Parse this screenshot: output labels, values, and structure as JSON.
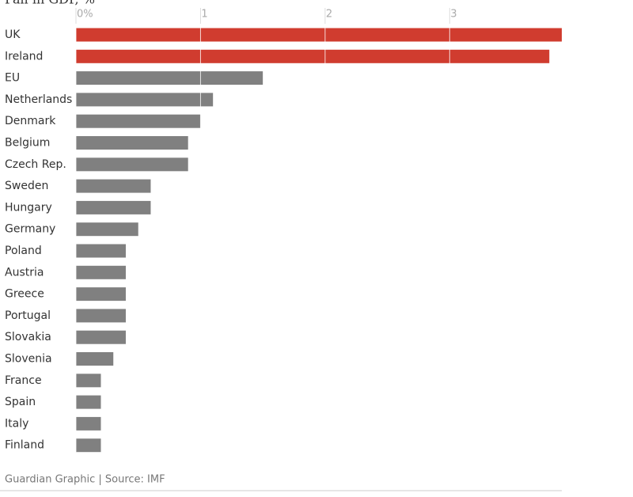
{
  "chart_data": {
    "type": "barh",
    "title": "Fall in GDP, %",
    "categories": [
      "UK",
      "Ireland",
      "EU",
      "Netherlands",
      "Denmark",
      "Belgium",
      "Czech Rep.",
      "Sweden",
      "Hungary",
      "Germany",
      "Poland",
      "Austria",
      "Greece",
      "Portugal",
      "Slovakia",
      "Slovenia",
      "France",
      "Spain",
      "Italy",
      "Finland"
    ],
    "values": [
      3.9,
      3.8,
      1.5,
      1.1,
      1.0,
      0.9,
      0.9,
      0.6,
      0.6,
      0.5,
      0.4,
      0.4,
      0.4,
      0.4,
      0.4,
      0.3,
      0.2,
      0.2,
      0.2,
      0.2
    ],
    "colors": [
      "#d03c2f",
      "#d03c2f",
      "#808080",
      "#808080",
      "#808080",
      "#808080",
      "#808080",
      "#808080",
      "#808080",
      "#808080",
      "#808080",
      "#808080",
      "#808080",
      "#808080",
      "#808080",
      "#808080",
      "#808080",
      "#808080",
      "#808080",
      "#808080"
    ],
    "xlim": [
      0,
      3.9
    ],
    "xticks": [
      {
        "value": 0,
        "label": "0%"
      },
      1,
      2,
      3
    ],
    "grid": true,
    "source": "Guardian Graphic | Source: IMF"
  }
}
